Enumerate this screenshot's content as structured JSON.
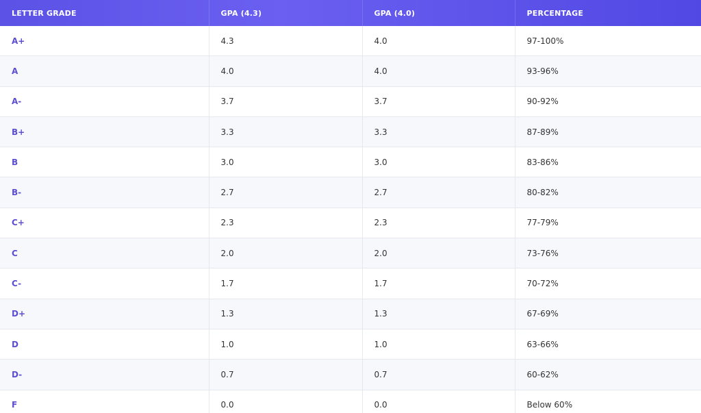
{
  "table": {
    "header": [
      "LETTER GRADE",
      "GPA (4.3)",
      "GPA (4.0)",
      "PERCENTAGE"
    ],
    "rows": [
      [
        "A+",
        "4.3",
        "4.0",
        "97-100%"
      ],
      [
        "A",
        "4.0",
        "4.0",
        "93-96%"
      ],
      [
        "A-",
        "3.7",
        "3.7",
        "90-92%"
      ],
      [
        "B+",
        "3.3",
        "3.3",
        "87-89%"
      ],
      [
        "B",
        "3.0",
        "3.0",
        "83-86%"
      ],
      [
        "B-",
        "2.7",
        "2.7",
        "80-82%"
      ],
      [
        "C+",
        "2.3",
        "2.3",
        "77-79%"
      ],
      [
        "C",
        "2.0",
        "2.0",
        "73-76%"
      ],
      [
        "C-",
        "1.7",
        "1.7",
        "70-72%"
      ],
      [
        "D+",
        "1.3",
        "1.3",
        "67-69%"
      ],
      [
        "D",
        "1.0",
        "1.0",
        "63-66%"
      ],
      [
        "D-",
        "0.7",
        "0.7",
        "60-62%"
      ],
      [
        "F",
        "0.0",
        "0.0",
        "Below 60%"
      ]
    ]
  }
}
